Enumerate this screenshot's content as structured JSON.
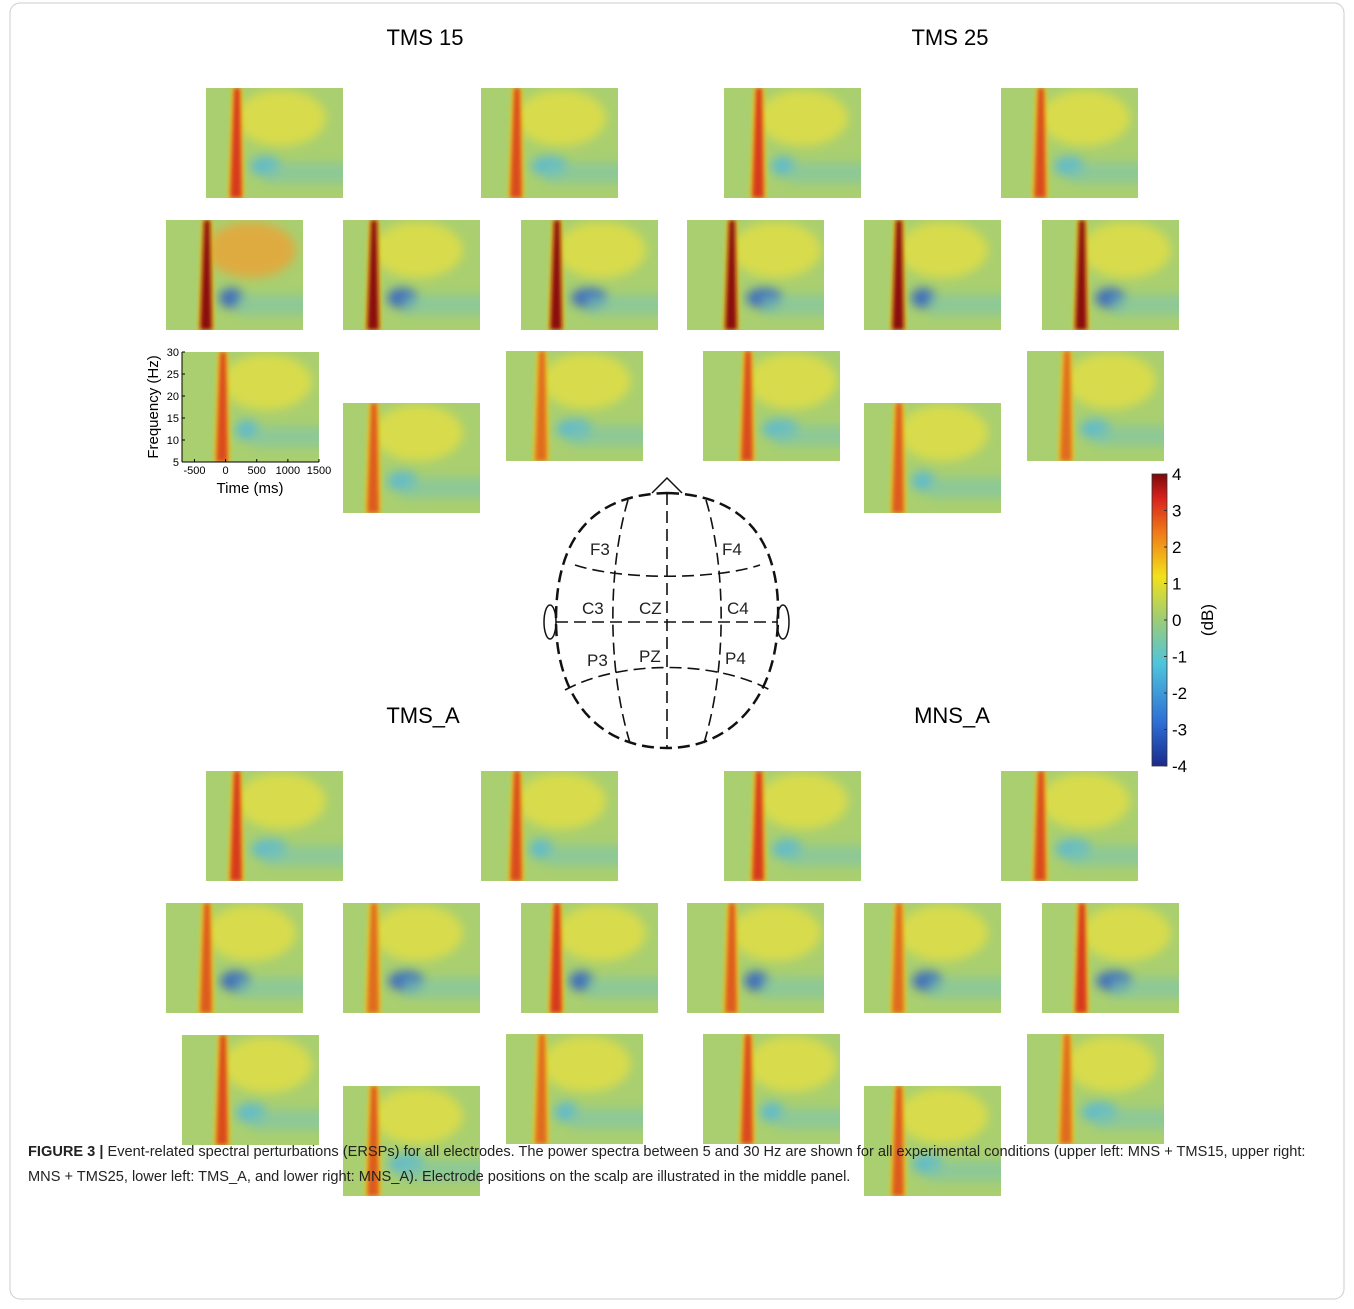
{
  "groups": [
    {
      "title": "TMS 15"
    },
    {
      "title": "TMS 25"
    },
    {
      "title": "TMS_A"
    },
    {
      "title": "MNS_A"
    }
  ],
  "example_axes": {
    "ylabel": "Frequency (Hz)",
    "xlabel": "Time (ms)",
    "xlim": [
      -700,
      1500
    ],
    "ylim": [
      5,
      30
    ],
    "xticks": [
      -500,
      0,
      500,
      1000,
      1500
    ],
    "yticks": [
      5,
      10,
      15,
      20,
      25,
      30
    ]
  },
  "colorbar": {
    "label": "(dB)",
    "lim": [
      -4,
      4
    ],
    "ticks": [
      -4,
      -3,
      -2,
      -1,
      0,
      1,
      2,
      3,
      4
    ]
  },
  "electrodes": [
    "F3",
    "F4",
    "C3",
    "CZ",
    "C4",
    "P3",
    "PZ",
    "P4"
  ],
  "caption": {
    "label": "FIGURE 3 |",
    "text": "Event-related spectral perturbations (ERSPs) for all electrodes. The power spectra between 5 and 30 Hz are shown for all experimental conditions (upper left: MNS + TMS15, upper right: MNS + TMS25, lower left: TMS_A, and lower right: MNS_A). Electrode positions on the scalp are illustrated in the middle panel."
  }
}
